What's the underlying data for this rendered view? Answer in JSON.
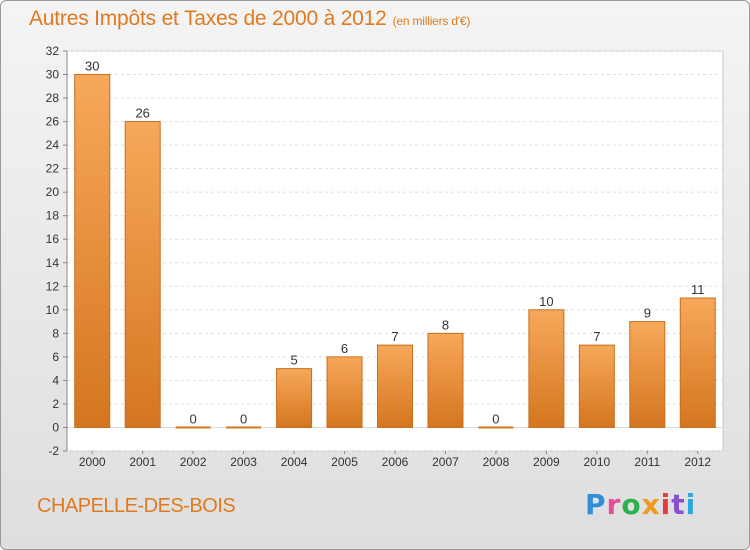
{
  "header": {
    "title": "Autres Impôts et Taxes de 2000 à 2012",
    "subtitle": "(en milliers d'€)"
  },
  "footer": {
    "commune": "CHAPELLE-DES-BOIS",
    "logo": "Proxiti"
  },
  "colors": {
    "bar_top": "#f7a85a",
    "bar_bottom": "#d4761f",
    "title": "#e07a20"
  },
  "chart_data": {
    "type": "bar",
    "title": "Autres Impôts et Taxes de 2000 à 2012",
    "categories": [
      "2000",
      "2001",
      "2002",
      "2003",
      "2004",
      "2005",
      "2006",
      "2007",
      "2008",
      "2009",
      "2010",
      "2011",
      "2012"
    ],
    "values": [
      30,
      26,
      0,
      0,
      5,
      6,
      7,
      8,
      0,
      10,
      7,
      9,
      11
    ],
    "xlabel": "",
    "ylabel": "",
    "ylim": [
      -2,
      32
    ],
    "yticks": [
      -2,
      0,
      2,
      4,
      6,
      8,
      10,
      12,
      14,
      16,
      18,
      20,
      22,
      24,
      26,
      28,
      30,
      32
    ],
    "grid": true,
    "legend": "none"
  }
}
